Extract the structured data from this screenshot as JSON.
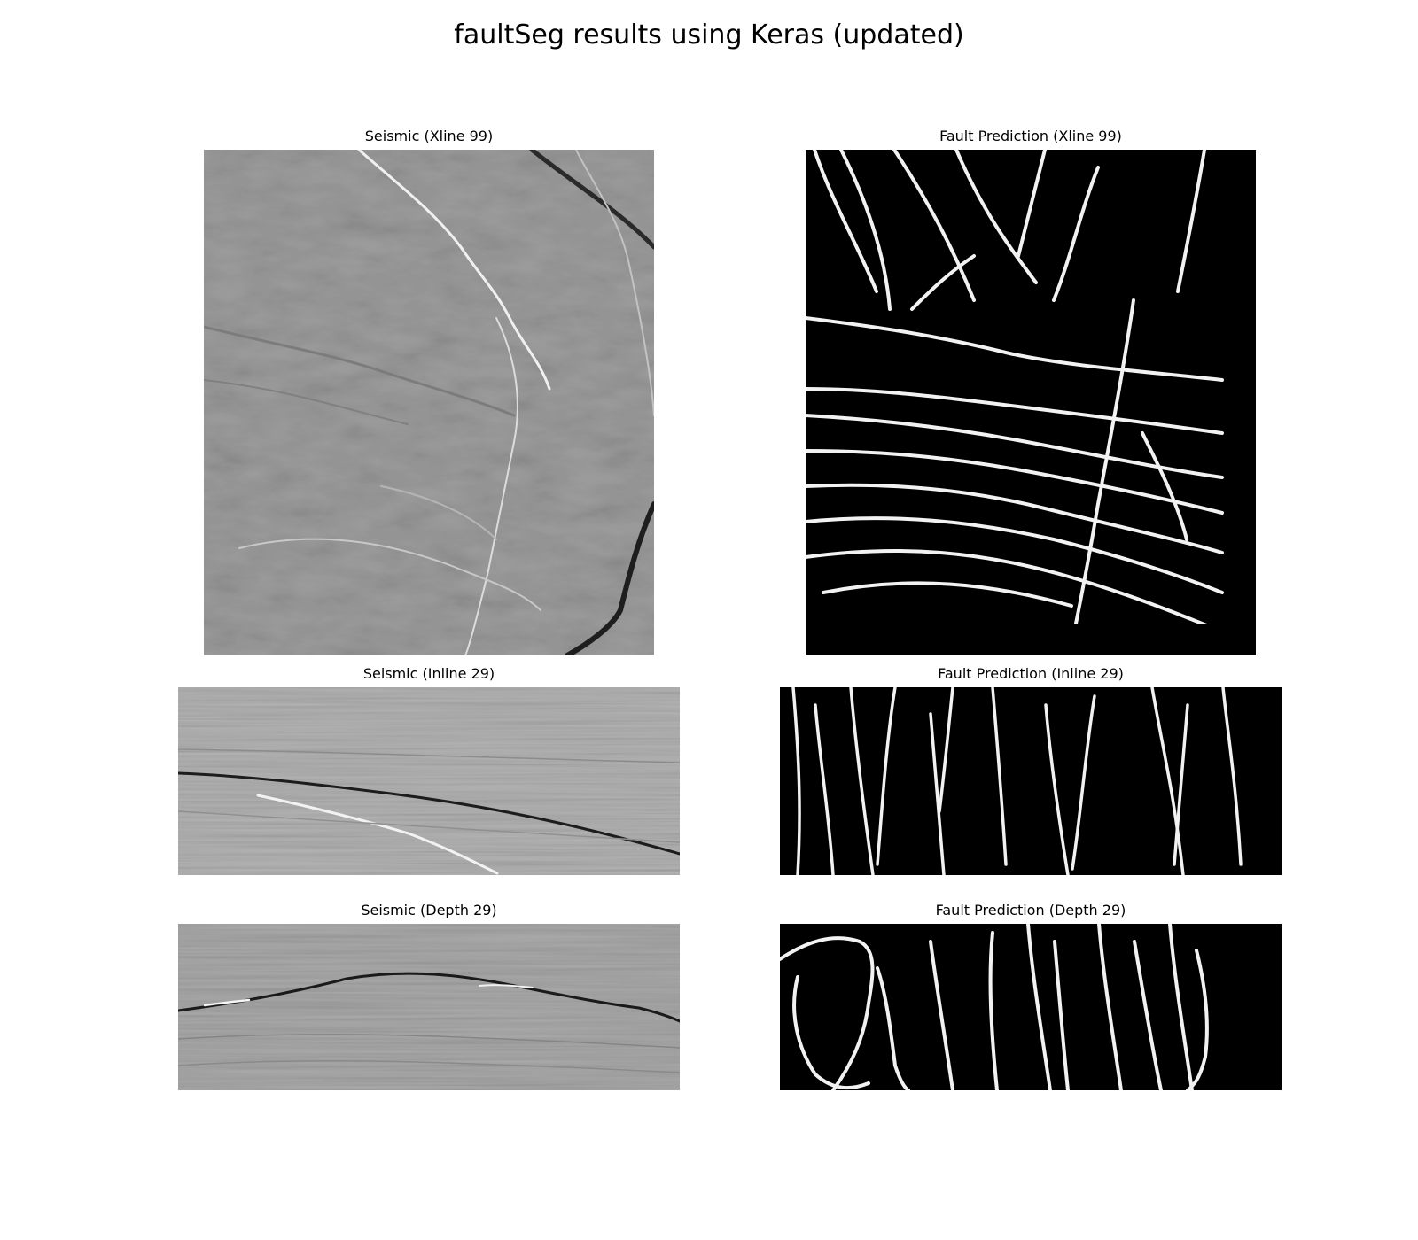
{
  "figure": {
    "title": "faultSeg results using Keras (updated)"
  },
  "panels": [
    {
      "title": "Seismic (Xline 99)",
      "kind": "seismic"
    },
    {
      "title": "Fault Prediction (Xline 99)",
      "kind": "fault"
    },
    {
      "title": "Seismic (Inline 29)",
      "kind": "seismic"
    },
    {
      "title": "Fault Prediction (Inline 29)",
      "kind": "fault"
    },
    {
      "title": "Seismic (Depth 29)",
      "kind": "seismic"
    },
    {
      "title": "Fault Prediction (Depth 29)",
      "kind": "fault"
    }
  ],
  "colors": {
    "seismic_base": "#9a9a9a",
    "fault_background": "#000000",
    "fault_line": "#ffffff"
  }
}
